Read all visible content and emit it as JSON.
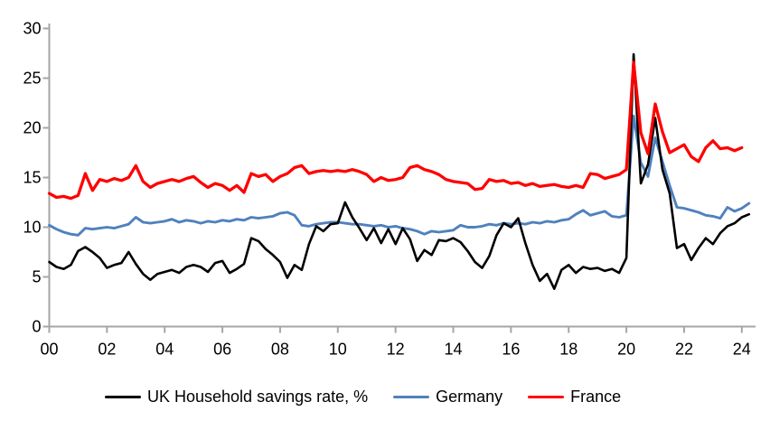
{
  "page": {
    "background": "#ffffff"
  },
  "chart_data": {
    "type": "line",
    "frequency": "quarterly",
    "start_period": "2000Q1",
    "x_axis": {
      "tick_labels": [
        "00",
        "02",
        "04",
        "06",
        "08",
        "10",
        "12",
        "14",
        "16",
        "18",
        "20",
        "22",
        "24"
      ],
      "start_year": 2000,
      "end_year": 2024
    },
    "y_axis": {
      "min": 0,
      "max": 30,
      "tick_step": 5,
      "tick_labels": [
        "0",
        "5",
        "10",
        "15",
        "20",
        "25",
        "30"
      ]
    },
    "grid": "off",
    "legend_position": "bottom",
    "axis_color": "#a6a6a6",
    "text_color": "#000000",
    "series": [
      {
        "name": "UK Household savings rate, %",
        "color": "#000000",
        "values": [
          6.5,
          6.0,
          5.8,
          6.2,
          7.6,
          8.0,
          7.5,
          6.9,
          5.9,
          6.2,
          6.4,
          7.5,
          6.3,
          5.3,
          4.7,
          5.3,
          5.5,
          5.7,
          5.4,
          6.0,
          6.2,
          6.0,
          5.5,
          6.4,
          6.6,
          5.4,
          5.8,
          6.3,
          8.9,
          8.6,
          7.8,
          7.2,
          6.5,
          4.9,
          6.2,
          5.7,
          8.3,
          10.1,
          9.6,
          10.3,
          10.4,
          12.5,
          11.0,
          9.9,
          8.7,
          9.9,
          8.4,
          9.8,
          8.3,
          9.9,
          8.8,
          6.6,
          7.7,
          7.2,
          8.7,
          8.6,
          8.9,
          8.5,
          7.6,
          6.5,
          5.9,
          7.1,
          9.2,
          10.4,
          10.0,
          10.9,
          8.4,
          6.2,
          4.6,
          5.3,
          3.8,
          5.7,
          6.2,
          5.4,
          6.0,
          5.8,
          5.9,
          5.6,
          5.8,
          5.4,
          6.9,
          27.4,
          14.4,
          16.3,
          21.0,
          15.8,
          13.4,
          7.9,
          8.3,
          6.7,
          7.9,
          8.9,
          8.3,
          9.4,
          10.1,
          10.4,
          11.0,
          11.3
        ]
      },
      {
        "name": "Germany",
        "color": "#4f81bd",
        "values": [
          10.2,
          9.8,
          9.5,
          9.3,
          9.2,
          9.9,
          9.8,
          9.9,
          10.0,
          9.9,
          10.1,
          10.3,
          11.0,
          10.5,
          10.4,
          10.5,
          10.6,
          10.8,
          10.5,
          10.7,
          10.6,
          10.4,
          10.6,
          10.5,
          10.7,
          10.6,
          10.8,
          10.7,
          11.0,
          10.9,
          11.0,
          11.1,
          11.4,
          11.5,
          11.2,
          10.2,
          10.1,
          10.3,
          10.4,
          10.5,
          10.5,
          10.4,
          10.3,
          10.3,
          10.2,
          10.1,
          10.2,
          10.0,
          10.1,
          9.9,
          9.8,
          9.6,
          9.3,
          9.6,
          9.5,
          9.6,
          9.7,
          10.2,
          10.0,
          10.0,
          10.1,
          10.3,
          10.2,
          10.4,
          10.3,
          10.4,
          10.3,
          10.5,
          10.4,
          10.6,
          10.5,
          10.7,
          10.8,
          11.3,
          11.7,
          11.2,
          11.4,
          11.6,
          11.1,
          11.0,
          11.2,
          21.2,
          16.5,
          15.1,
          19.0,
          16.6,
          14.2,
          12.0,
          11.9,
          11.7,
          11.5,
          11.2,
          11.1,
          10.9,
          12.0,
          11.6,
          11.9,
          12.4
        ]
      },
      {
        "name": "France",
        "color": "#ff0000",
        "values": [
          13.4,
          13.0,
          13.1,
          12.9,
          13.2,
          15.4,
          13.7,
          14.8,
          14.6,
          14.9,
          14.7,
          15.0,
          16.2,
          14.6,
          14.0,
          14.4,
          14.6,
          14.8,
          14.6,
          14.9,
          15.1,
          14.5,
          14.0,
          14.4,
          14.2,
          13.7,
          14.2,
          13.5,
          15.4,
          15.1,
          15.3,
          14.6,
          15.1,
          15.4,
          16.0,
          16.2,
          15.4,
          15.6,
          15.7,
          15.6,
          15.7,
          15.6,
          15.8,
          15.6,
          15.3,
          14.6,
          15.0,
          14.7,
          14.8,
          15.0,
          16.0,
          16.2,
          15.8,
          15.6,
          15.3,
          14.8,
          14.6,
          14.5,
          14.4,
          13.8,
          13.9,
          14.8,
          14.6,
          14.7,
          14.4,
          14.5,
          14.2,
          14.4,
          14.1,
          14.2,
          14.3,
          14.1,
          14.0,
          14.2,
          14.0,
          15.4,
          15.3,
          14.9,
          15.1,
          15.3,
          15.8,
          26.6,
          19.5,
          17.4,
          22.4,
          19.6,
          17.5,
          17.9,
          18.3,
          17.1,
          16.6,
          18.0,
          18.7,
          17.9,
          18.0,
          17.7,
          18.0
        ]
      }
    ]
  }
}
